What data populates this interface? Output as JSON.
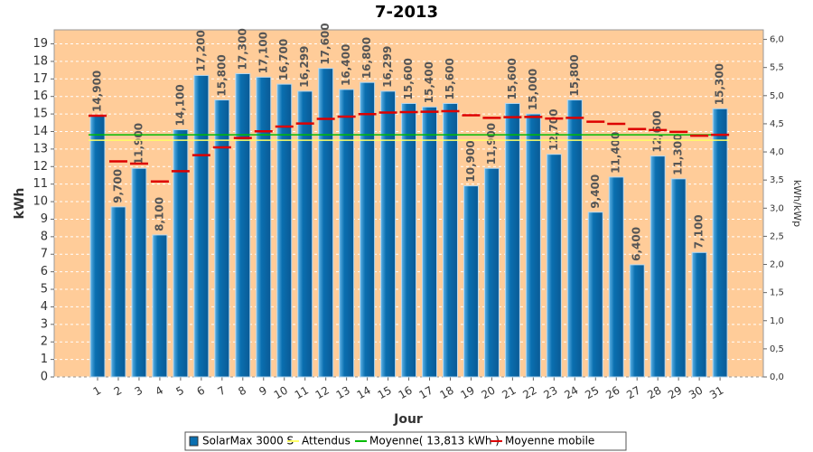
{
  "chart_data": {
    "type": "bar",
    "title": "7-2013",
    "x_label": "Jour",
    "y_label": "kWh",
    "y2_label": "kWh/kWp",
    "categories": [
      "1",
      "2",
      "3",
      "4",
      "5",
      "6",
      "7",
      "8",
      "9",
      "10",
      "11",
      "12",
      "13",
      "14",
      "15",
      "16",
      "17",
      "18",
      "19",
      "20",
      "21",
      "22",
      "23",
      "24",
      "25",
      "26",
      "27",
      "28",
      "29",
      "30",
      "31"
    ],
    "series": [
      {
        "name": "SolarMax 3000 S",
        "color": "#0a6fb0",
        "values": [
          14.9,
          9.7,
          11.9,
          8.1,
          14.1,
          17.2,
          15.8,
          17.3,
          17.1,
          16.7,
          16.299,
          17.6,
          16.4,
          16.8,
          16.299,
          15.6,
          15.4,
          15.6,
          10.9,
          11.9,
          15.6,
          15.0,
          12.7,
          15.8,
          9.4,
          11.4,
          6.4,
          12.6,
          11.3,
          7.1,
          15.3
        ],
        "value_labels": [
          "14,900",
          "9,700",
          "11,900",
          "8,100",
          "14,100",
          "17,200",
          "15,800",
          "17,300",
          "17,100",
          "16,700",
          "16,299",
          "17,600",
          "16,400",
          "16,800",
          "16,299",
          "15,600",
          "15,400",
          "15,600",
          "10,900",
          "11,900",
          "15,600",
          "15,000",
          "12,700",
          "15,800",
          "9,400",
          "11,400",
          "6,400",
          "12,600",
          "11,300",
          "7,100",
          "15,300"
        ]
      },
      {
        "name": "Attendus",
        "color": "#ffff66",
        "kind": "hline",
        "value": 13.5
      },
      {
        "name": "Moyenne( 13,813 kWh )",
        "color": "#00bb00",
        "kind": "hline",
        "value": 13.813
      },
      {
        "name": "Moyenne mobile",
        "color": "#dd0000",
        "kind": "steps",
        "values": [
          14.9,
          12.3,
          12.17,
          11.15,
          11.74,
          12.65,
          13.1,
          13.63,
          14.01,
          14.28,
          14.46,
          14.72,
          14.85,
          14.99,
          15.08,
          15.11,
          15.13,
          15.16,
          14.93,
          14.78,
          14.82,
          14.83,
          14.74,
          14.78,
          14.56,
          14.44,
          14.14,
          14.08,
          13.98,
          13.76,
          13.81
        ]
      }
    ],
    "ylim": [
      0,
      19.8
    ],
    "yticks": [
      0,
      1,
      2,
      3,
      4,
      5,
      6,
      7,
      8,
      9,
      10,
      11,
      12,
      13,
      14,
      15,
      16,
      17,
      18,
      19
    ],
    "y2lim": [
      0,
      6.17
    ],
    "y2ticks": [
      {
        "value": 0,
        "label": "0,0"
      },
      {
        "value": 0.5,
        "label": "0,5"
      },
      {
        "value": 1,
        "label": "1,0"
      },
      {
        "value": 1.5,
        "label": "1,5"
      },
      {
        "value": 2,
        "label": "2,0"
      },
      {
        "value": 2.5,
        "label": "2,5"
      },
      {
        "value": 3,
        "label": "3,0"
      },
      {
        "value": 3.5,
        "label": "3,5"
      },
      {
        "value": 4,
        "label": "4,0"
      },
      {
        "value": 4.5,
        "label": "4,5"
      },
      {
        "value": 5,
        "label": "5,0"
      },
      {
        "value": 5.5,
        "label": "5,5"
      },
      {
        "value": 6,
        "label": "6,0"
      }
    ],
    "grid": true
  }
}
